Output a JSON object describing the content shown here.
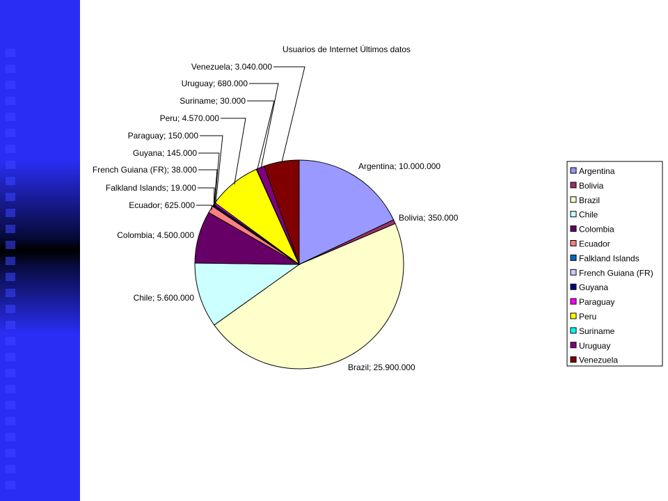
{
  "chart_data": {
    "type": "pie",
    "title": "Usuarios de Internet Últimos datos",
    "legend_position": "right",
    "slices": [
      {
        "name": "Argentina",
        "value": 10000000,
        "label": "Argentina; 10.000.000",
        "color": "#9999ff"
      },
      {
        "name": "Bolivia",
        "value": 350000,
        "label": "Bolivia; 350.000",
        "color": "#993366"
      },
      {
        "name": "Brazil",
        "value": 25900000,
        "label": "Brazil; 25.900.000",
        "color": "#ffffcc"
      },
      {
        "name": "Chile",
        "value": 5600000,
        "label": "Chile; 5.600.000",
        "color": "#ccffff"
      },
      {
        "name": "Colombia",
        "value": 4500000,
        "label": "Colombia; 4.500.000",
        "color": "#660066"
      },
      {
        "name": "Ecuador",
        "value": 625000,
        "label": "Ecuador; 625.000",
        "color": "#ff8080"
      },
      {
        "name": "Falkland Islands",
        "value": 19000,
        "label": "Falkland Islands; 19.000",
        "color": "#0066cc"
      },
      {
        "name": "French Guiana (FR)",
        "value": 38000,
        "label": "French Guiana (FR); 38.000",
        "color": "#ccccff"
      },
      {
        "name": "Guyana",
        "value": 145000,
        "label": "Guyana; 145.000",
        "color": "#000080"
      },
      {
        "name": "Paraguay",
        "value": 150000,
        "label": "Paraguay; 150.000",
        "color": "#ff00ff"
      },
      {
        "name": "Peru",
        "value": 4570000,
        "label": "Peru; 4.570.000",
        "color": "#ffff00"
      },
      {
        "name": "Suriname",
        "value": 30000,
        "label": "Suriname; 30.000",
        "color": "#00ffff"
      },
      {
        "name": "Uruguay",
        "value": 680000,
        "label": "Uruguay; 680.000",
        "color": "#800080"
      },
      {
        "name": "Venezuela",
        "value": 3040000,
        "label": "Venezuela; 3.040.000",
        "color": "#800000"
      }
    ]
  }
}
